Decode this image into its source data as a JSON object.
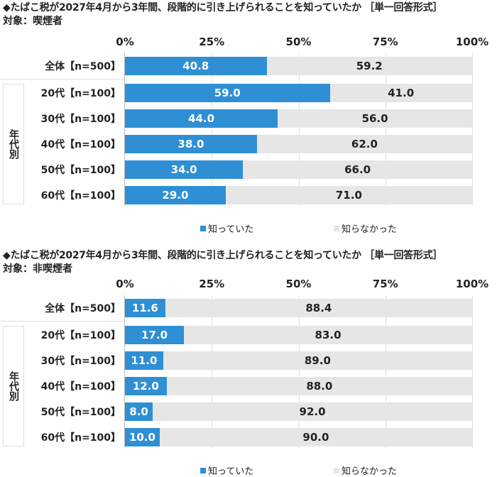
{
  "colors": {
    "known": "#2f8fd5",
    "unknown": "#e6e6e6"
  },
  "chart_data": [
    {
      "type": "bar",
      "orientation": "horizontal-stacked",
      "title": "◆たばこ税が2027年4月から3年間、段階的に引き上げられることを知っていたか ［単一回答形式］",
      "subject": "対象：喫煙者",
      "group_label": "年代別",
      "ticks": [
        "0%",
        "25%",
        "50%",
        "75%",
        "100%"
      ],
      "xlim": [
        0,
        100
      ],
      "categories": [
        "全体【n=500】",
        "20代【n=100】",
        "30代【n=100】",
        "40代【n=100】",
        "50代【n=100】",
        "60代【n=100】"
      ],
      "series": [
        {
          "name": "知っていた",
          "values": [
            40.8,
            59.0,
            44.0,
            38.0,
            34.0,
            29.0
          ]
        },
        {
          "name": "知らなかった",
          "values": [
            59.2,
            41.0,
            56.0,
            62.0,
            66.0,
            71.0
          ]
        }
      ],
      "legend": "bottom"
    },
    {
      "type": "bar",
      "orientation": "horizontal-stacked",
      "title": "◆たばこ税が2027年4月から3年間、段階的に引き上げられることを知っていたか ［単一回答形式］",
      "subject": "対象：非喫煙者",
      "group_label": "年代別",
      "ticks": [
        "0%",
        "25%",
        "50%",
        "75%",
        "100%"
      ],
      "xlim": [
        0,
        100
      ],
      "categories": [
        "全体【n=500】",
        "20代【n=100】",
        "30代【n=100】",
        "40代【n=100】",
        "50代【n=100】",
        "60代【n=100】"
      ],
      "series": [
        {
          "name": "知っていた",
          "values": [
            11.6,
            17.0,
            11.0,
            12.0,
            8.0,
            10.0
          ]
        },
        {
          "name": "知らなかった",
          "values": [
            88.4,
            83.0,
            89.0,
            88.0,
            92.0,
            90.0
          ]
        }
      ],
      "legend": "bottom"
    }
  ]
}
